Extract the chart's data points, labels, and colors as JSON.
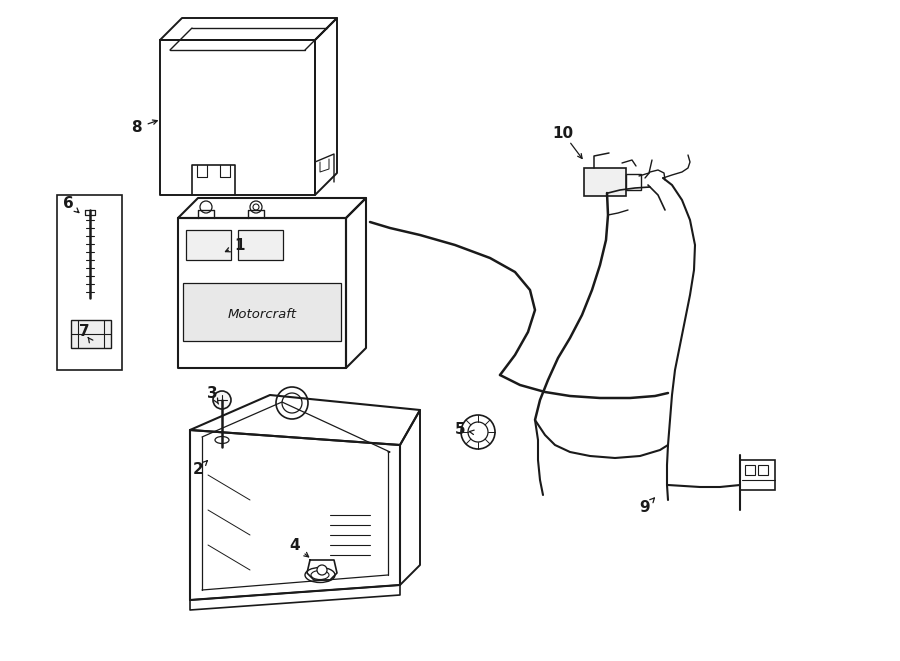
{
  "background": "#ffffff",
  "line_color": "#1a1a1a",
  "figsize": [
    9.0,
    6.61
  ],
  "dpi": 100
}
